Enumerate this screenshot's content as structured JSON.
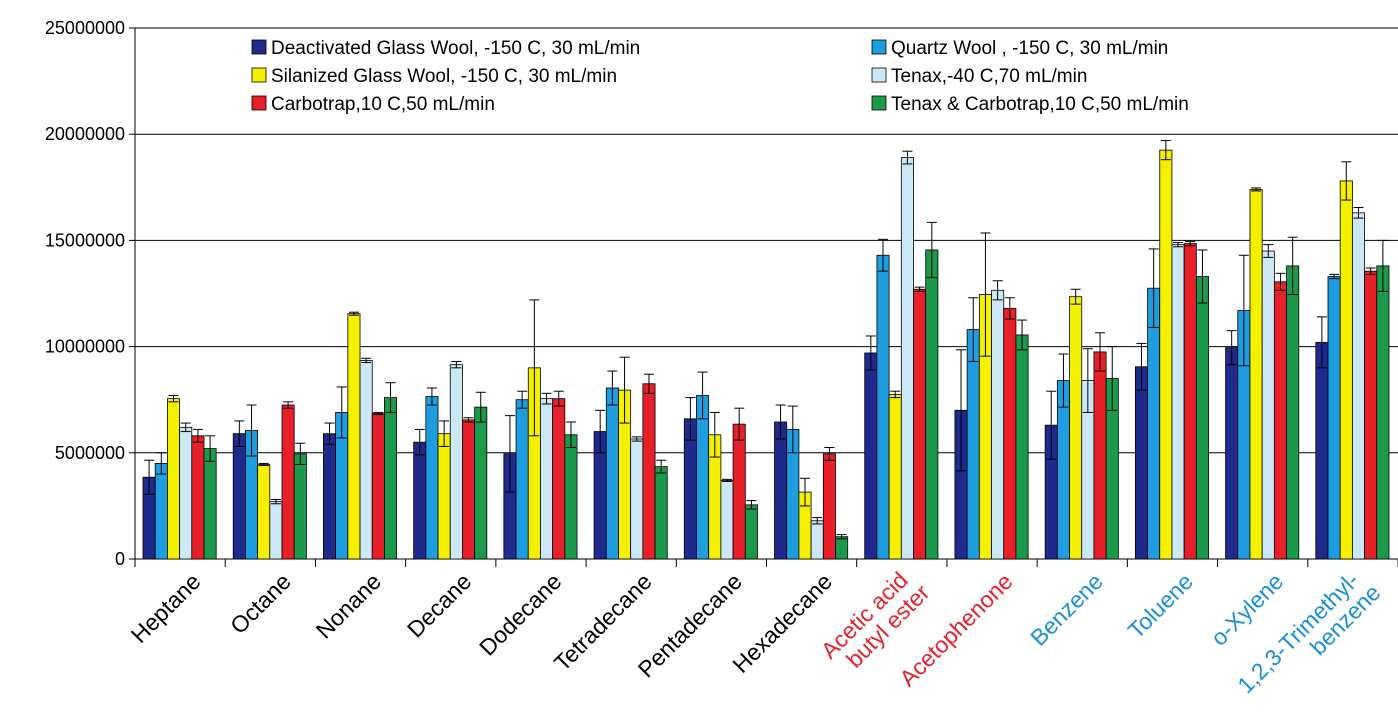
{
  "chart_data": {
    "type": "bar",
    "categories": [
      "Heptane",
      "Octane",
      "Nonane",
      "Decane",
      "Dodecane",
      "Tetradecane",
      "Pentadecane",
      "Hexadecane",
      "Acetic acid\nbutyl ester",
      "Acetophenone",
      "Benzene",
      "Toluene",
      "o-Xylene",
      "1,2,3-Trimethyl-\nbenzene"
    ],
    "category_colors": [
      "#000000",
      "#000000",
      "#000000",
      "#000000",
      "#000000",
      "#000000",
      "#000000",
      "#000000",
      "#e8202a",
      "#e8202a",
      "#1a8fd8",
      "#1a8fd8",
      "#1a8fd8",
      "#1a8fd8"
    ],
    "series": [
      {
        "name": "Deactivated Glass Wool, -150 C, 30 mL/min",
        "color": "#1f2a8c",
        "values": [
          3850000,
          5900000,
          5900000,
          5500000,
          4950000,
          6000000,
          6600000,
          6450000,
          9700000,
          7000000,
          6300000,
          9050000,
          9950000,
          10200000
        ],
        "errors": [
          800000,
          600000,
          500000,
          600000,
          1800000,
          1000000,
          1000000,
          800000,
          800000,
          2850000,
          1600000,
          1100000,
          800000,
          1200000
        ]
      },
      {
        "name": "Quartz Wool , -150 C, 30 mL/min",
        "color": "#1e9ee0",
        "values": [
          4500000,
          6050000,
          6900000,
          7650000,
          7500000,
          8050000,
          7700000,
          6100000,
          14300000,
          10800000,
          8400000,
          12750000,
          11700000,
          13300000
        ],
        "errors": [
          500000,
          1200000,
          1200000,
          400000,
          400000,
          800000,
          1100000,
          1100000,
          750000,
          1500000,
          1250000,
          1850000,
          2600000,
          100000
        ]
      },
      {
        "name": "Silanized Glass Wool, -150 C, 30 mL/min",
        "color": "#f5f000",
        "values": [
          7550000,
          4450000,
          11550000,
          5900000,
          9000000,
          7950000,
          5850000,
          3150000,
          7750000,
          12450000,
          12350000,
          19250000,
          17400000,
          17800000
        ],
        "errors": [
          150000,
          50000,
          70000,
          600000,
          3200000,
          1550000,
          1050000,
          650000,
          150000,
          2900000,
          350000,
          450000,
          70000,
          900000
        ]
      },
      {
        "name": "Tenax,-40 C,70 mL/min",
        "color": "#cde8f5",
        "values": [
          6200000,
          2700000,
          9350000,
          9150000,
          7550000,
          5650000,
          3700000,
          1800000,
          18900000,
          12650000,
          8400000,
          14800000,
          14500000,
          16300000
        ],
        "errors": [
          200000,
          100000,
          100000,
          150000,
          250000,
          100000,
          50000,
          150000,
          300000,
          450000,
          1500000,
          100000,
          300000,
          250000
        ]
      },
      {
        "name": "Carbotrap,10 C,50 mL/min",
        "color": "#e8202a",
        "values": [
          5800000,
          7250000,
          6850000,
          6550000,
          7550000,
          8250000,
          6350000,
          4950000,
          12700000,
          11800000,
          9750000,
          14850000,
          13050000,
          13550000
        ],
        "errors": [
          300000,
          150000,
          50000,
          100000,
          350000,
          450000,
          750000,
          300000,
          100000,
          500000,
          900000,
          100000,
          400000,
          150000
        ]
      },
      {
        "name": "Tenax & Carbotrap,10 C,50 mL/min",
        "color": "#1a9a4a",
        "values": [
          5200000,
          4950000,
          7600000,
          7150000,
          5850000,
          4350000,
          2550000,
          1050000,
          14550000,
          10550000,
          8500000,
          13300000,
          13800000,
          13800000
        ],
        "errors": [
          600000,
          500000,
          700000,
          700000,
          600000,
          300000,
          200000,
          100000,
          1300000,
          700000,
          1500000,
          1250000,
          1350000,
          1200000
        ]
      }
    ],
    "ylim": [
      0,
      25000000
    ],
    "yticks": [
      0,
      5000000,
      10000000,
      15000000,
      20000000,
      25000000
    ],
    "grid": true
  }
}
